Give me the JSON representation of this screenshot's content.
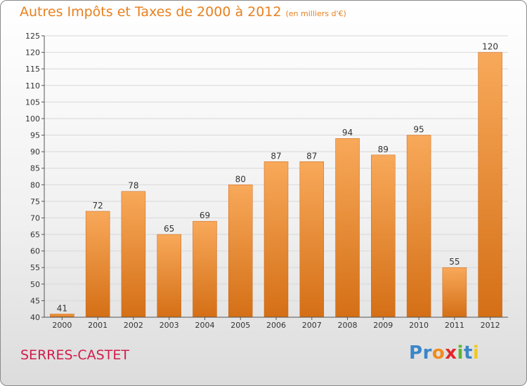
{
  "header": {
    "title": "Autres Impôts et Taxes de 2000 à 2012",
    "subtitle": "(en milliers d'€)"
  },
  "footer": {
    "commune": "SERRES-CASTET",
    "logo_letters": [
      {
        "char": "P",
        "color": "#3a86c8"
      },
      {
        "char": "r",
        "color": "#3a86c8"
      },
      {
        "char": "o",
        "color": "#f08c1e"
      },
      {
        "char": "x",
        "color": "#e3262a"
      },
      {
        "char": "i",
        "color": "#5cb531"
      },
      {
        "char": "t",
        "color": "#3a86c8"
      },
      {
        "char": "i",
        "color": "#f2c81e"
      }
    ]
  },
  "colors": {
    "title": "#e8801e",
    "commune": "#d11c4a",
    "bar_light": "#f8a95a",
    "bar_dark": "#d46f16",
    "grid": "#d8d8d8"
  },
  "chart_data": {
    "type": "bar",
    "categories": [
      "2000",
      "2001",
      "2002",
      "2003",
      "2004",
      "2005",
      "2006",
      "2007",
      "2008",
      "2009",
      "2010",
      "2011",
      "2012"
    ],
    "values": [
      41,
      72,
      78,
      65,
      69,
      80,
      87,
      87,
      94,
      89,
      95,
      55,
      120
    ],
    "ylim": [
      40,
      125
    ],
    "yticks": [
      40,
      45,
      50,
      55,
      60,
      65,
      70,
      75,
      80,
      85,
      90,
      95,
      100,
      105,
      110,
      115,
      120,
      125
    ],
    "grid": true,
    "title": "Autres Impôts et Taxes de 2000 à 2012",
    "subtitle": "(en milliers d'€)",
    "xlabel": "",
    "ylabel": ""
  }
}
